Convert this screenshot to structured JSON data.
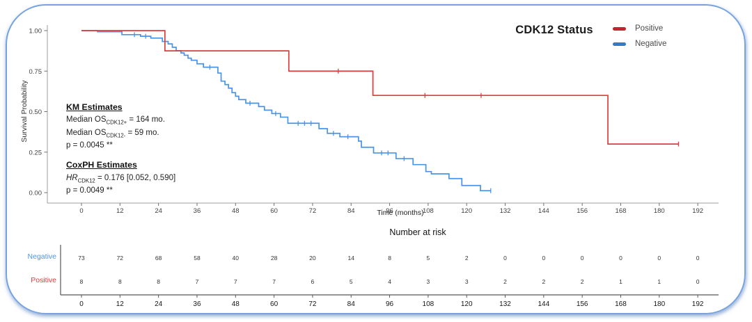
{
  "title": "CDK12 Status",
  "legend": {
    "items": [
      {
        "label": "Positive",
        "color": "#c2252e"
      },
      {
        "label": "Negative",
        "color": "#2e7ccc"
      }
    ]
  },
  "annotations": {
    "km_header": "KM Estimates",
    "km_lines": [
      {
        "prefix": "Median OS",
        "sub": "CDK12+",
        "suffix": " = 164 mo."
      },
      {
        "prefix": "Median OS",
        "sub": "CDK12-",
        "suffix": " = 59 mo."
      }
    ],
    "km_p": "p = 0.0045 **",
    "cox_header": "CoxPH Estimates",
    "cox_line": {
      "prefix_italic": "HR",
      "sub": "CDK12",
      "suffix": " = 0.176 [0.052, 0.590]"
    },
    "cox_p": "p = 0.0049 **"
  },
  "chart_data": {
    "type": "line",
    "subtype": "kaplan-meier-step",
    "title": "CDK12 Status",
    "xlabel": "Time (months)",
    "ylabel": "Survival Probability",
    "xlim": [
      0,
      192
    ],
    "ylim": [
      0,
      1
    ],
    "xticks": [
      0,
      12,
      24,
      36,
      48,
      60,
      72,
      84,
      96,
      108,
      120,
      132,
      144,
      156,
      168,
      180,
      192
    ],
    "yticks": [
      0,
      0.25,
      0.5,
      0.75,
      1
    ],
    "ytick_labels": [
      "0.00",
      "0.25",
      "0.50",
      "0.75",
      "1.00"
    ],
    "grid": false,
    "legend_position": "top-right",
    "series": [
      {
        "name": "Positive",
        "color": "#e23b3b",
        "steps": [
          [
            0,
            1.0
          ],
          [
            26,
            0.875
          ],
          [
            64.6,
            0.75
          ],
          [
            90.8,
            0.6
          ],
          [
            164,
            0.3
          ]
        ],
        "end_time": 186,
        "censors": [
          [
            80,
            0.75
          ],
          [
            107,
            0.6
          ],
          [
            124.5,
            0.6
          ],
          [
            186,
            0.3
          ]
        ]
      },
      {
        "name": "Negative",
        "color": "#4a94e8",
        "steps": [
          [
            0,
            1.0
          ],
          [
            5,
            0.993
          ],
          [
            12.6,
            0.975
          ],
          [
            18.4,
            0.965
          ],
          [
            21.6,
            0.954
          ],
          [
            25.2,
            0.933
          ],
          [
            27,
            0.918
          ],
          [
            28.3,
            0.897
          ],
          [
            29.5,
            0.876
          ],
          [
            31,
            0.862
          ],
          [
            32,
            0.848
          ],
          [
            33.2,
            0.83
          ],
          [
            34.2,
            0.817
          ],
          [
            36,
            0.795
          ],
          [
            38,
            0.774
          ],
          [
            42.5,
            0.738
          ],
          [
            43.5,
            0.688
          ],
          [
            44.7,
            0.667
          ],
          [
            45.8,
            0.645
          ],
          [
            46.9,
            0.617
          ],
          [
            48,
            0.595
          ],
          [
            49,
            0.574
          ],
          [
            51.2,
            0.552
          ],
          [
            55.2,
            0.531
          ],
          [
            57,
            0.509
          ],
          [
            59.3,
            0.488
          ],
          [
            62,
            0.466
          ],
          [
            64.3,
            0.428
          ],
          [
            74,
            0.395
          ],
          [
            76.6,
            0.366
          ],
          [
            80.5,
            0.345
          ],
          [
            86.3,
            0.318
          ],
          [
            87.2,
            0.28
          ],
          [
            91,
            0.245
          ],
          [
            98,
            0.21
          ],
          [
            103.3,
            0.173
          ],
          [
            107.3,
            0.13
          ],
          [
            109,
            0.116
          ],
          [
            114.5,
            0.087
          ],
          [
            118.5,
            0.044
          ],
          [
            124.3,
            0.012
          ]
        ],
        "end_time": 127.5,
        "censors": [
          [
            16.5,
            0.975
          ],
          [
            20,
            0.965
          ],
          [
            40,
            0.774
          ],
          [
            52.5,
            0.552
          ],
          [
            60.5,
            0.488
          ],
          [
            67.5,
            0.428
          ],
          [
            69.5,
            0.428
          ],
          [
            71.5,
            0.428
          ],
          [
            78.5,
            0.366
          ],
          [
            83,
            0.345
          ],
          [
            93.5,
            0.245
          ],
          [
            95.5,
            0.245
          ],
          [
            100.5,
            0.21
          ],
          [
            127.5,
            0.012
          ]
        ]
      }
    ]
  },
  "risk_table": {
    "header": "Number at risk",
    "times": [
      0,
      12,
      24,
      36,
      48,
      60,
      72,
      84,
      96,
      108,
      120,
      132,
      144,
      156,
      168,
      180,
      192
    ],
    "rows": [
      {
        "label": "Negative",
        "color": "#4a94e8",
        "counts": [
          73,
          72,
          68,
          58,
          40,
          28,
          20,
          14,
          8,
          5,
          2,
          0,
          0,
          0,
          0,
          0,
          0
        ]
      },
      {
        "label": "Positive",
        "color": "#e23b3b",
        "counts": [
          8,
          8,
          8,
          7,
          7,
          7,
          6,
          5,
          4,
          3,
          3,
          2,
          2,
          2,
          1,
          1,
          0
        ]
      }
    ]
  }
}
